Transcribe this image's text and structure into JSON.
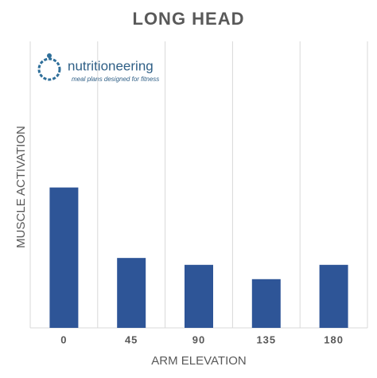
{
  "chart_data": {
    "type": "bar",
    "title": "LONG HEAD",
    "logo": {
      "name": "nutritioneering",
      "tagline": "meal plans designed for fitness"
    },
    "xlabel": "ARM ELEVATION",
    "ylabel": "MUSCLE ACTIVATION",
    "categories": [
      "0",
      "45",
      "90",
      "135",
      "180"
    ],
    "values": [
      49,
      24.4,
      22,
      17,
      22
    ],
    "color": "#2e5597",
    "ylim": [
      0,
      100
    ]
  }
}
